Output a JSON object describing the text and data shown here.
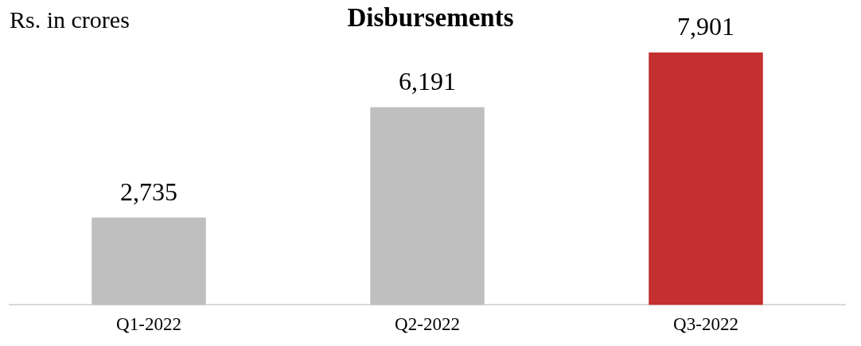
{
  "chart_data": {
    "type": "bar",
    "title": "Disbursements",
    "ylabel": "Rs. in crores",
    "categories": [
      "Q1-2022",
      "Q2-2022",
      "Q3-2022"
    ],
    "values": [
      2735,
      6191,
      7901
    ],
    "colors": [
      "#bfbfbf",
      "#bfbfbf",
      "#c3302f"
    ],
    "value_labels": [
      "2,735",
      "6,191",
      "7,901"
    ],
    "grid": false,
    "legend": false
  }
}
